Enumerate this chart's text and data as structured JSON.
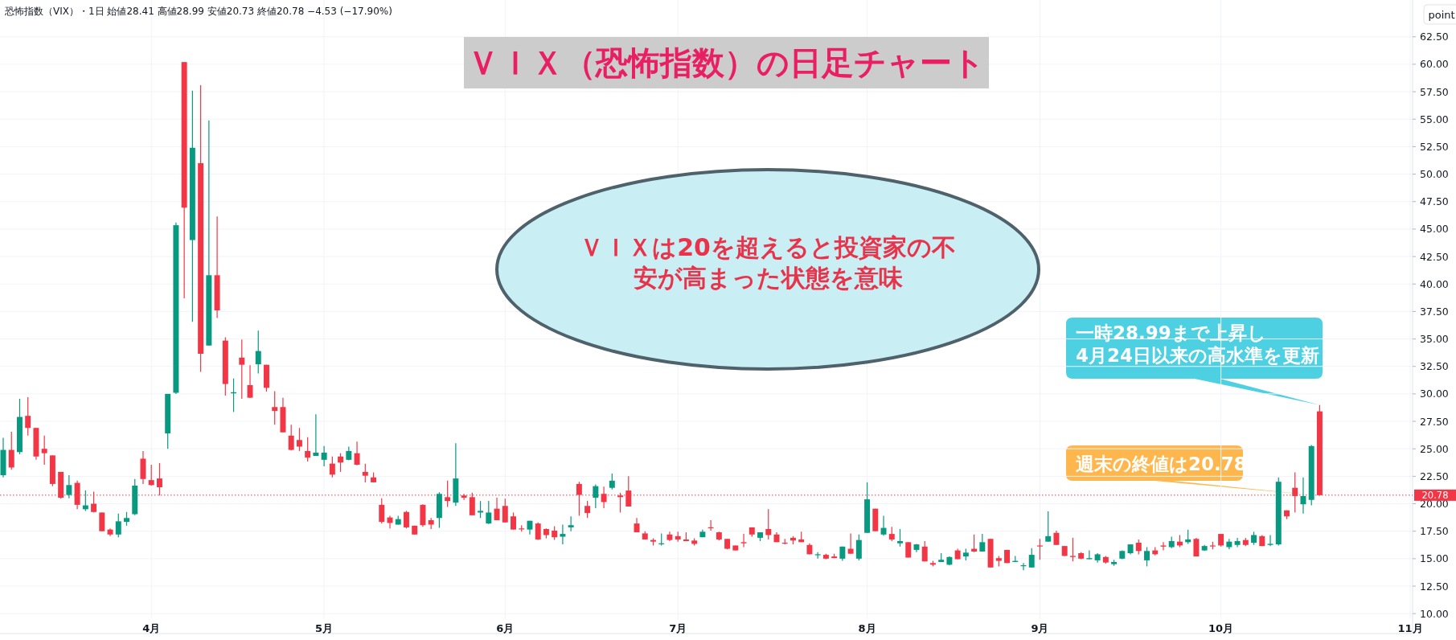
{
  "chart_data": {
    "type": "candlestick",
    "title": "ＶＩＸ（恐怖指数）の日足チャート",
    "ylabel": "point",
    "categories": [
      null,
      null,
      null,
      null,
      null,
      null,
      null,
      null,
      null,
      null,
      null,
      null,
      null,
      null,
      null,
      null,
      null,
      null,
      "4月",
      null,
      null,
      null,
      null,
      null,
      null,
      null,
      null,
      null,
      null,
      null,
      null,
      null,
      null,
      null,
      null,
      null,
      null,
      null,
      null,
      "5月",
      null,
      null,
      null,
      null,
      null,
      null,
      null,
      null,
      null,
      null,
      null,
      null,
      null,
      null,
      null,
      null,
      null,
      null,
      null,
      null,
      null,
      "6月",
      null,
      null,
      null,
      null,
      null,
      null,
      null,
      null,
      null,
      null,
      null,
      null,
      null,
      null,
      null,
      null,
      null,
      null,
      null,
      null,
      "7月",
      null,
      null,
      null,
      null,
      null,
      null,
      null,
      null,
      null,
      null,
      null,
      null,
      null,
      null,
      null,
      null,
      null,
      null,
      null,
      null,
      null,
      null,
      "8月",
      null,
      null,
      null,
      null,
      null,
      null,
      null,
      null,
      null,
      null,
      null,
      null,
      null,
      null,
      null,
      null,
      null,
      null,
      null,
      null,
      "9月",
      null,
      null,
      null,
      null,
      null,
      null,
      null,
      null,
      null,
      null,
      null,
      null,
      null,
      null,
      null,
      null,
      null,
      null,
      null,
      null,
      null,
      "10月",
      null,
      null,
      null,
      null,
      null,
      null,
      null,
      null,
      null,
      null,
      null,
      null,
      null,
      null,
      null,
      null,
      null,
      null,
      null,
      null,
      null,
      null,
      "11月"
    ],
    "ohlc": [
      [
        22.6,
        26.0,
        22.4,
        24.9
      ],
      [
        24.9,
        26.55,
        23.1,
        23.3
      ],
      [
        24.7,
        29.55,
        24.5,
        27.9
      ],
      [
        28.0,
        29.7,
        26.2,
        26.9
      ],
      [
        26.9,
        26.9,
        24.0,
        24.3
      ],
      [
        25.0,
        26.2,
        23.55,
        24.6
      ],
      [
        24.4,
        24.4,
        21.6,
        21.8
      ],
      [
        22.9,
        22.9,
        20.45,
        20.55
      ],
      [
        20.8,
        22.6,
        20.5,
        21.7
      ],
      [
        21.9,
        22.1,
        19.5,
        19.9
      ],
      [
        19.5,
        21.2,
        19.35,
        19.85
      ],
      [
        20.0,
        21.1,
        19.2,
        19.25
      ],
      [
        19.2,
        19.2,
        17.5,
        17.5
      ],
      [
        17.65,
        17.75,
        17.05,
        17.2
      ],
      [
        17.2,
        19.1,
        16.95,
        18.4
      ],
      [
        18.35,
        19.25,
        18.0,
        18.7
      ],
      [
        19.05,
        22.25,
        18.95,
        21.65
      ],
      [
        24.1,
        24.8,
        21.8,
        22.25
      ],
      [
        22.15,
        23.55,
        21.65,
        21.7
      ],
      [
        22.3,
        23.7,
        20.75,
        21.5
      ],
      [
        26.4,
        30.0,
        25.0,
        30.0
      ],
      [
        30.1,
        45.6,
        30.0,
        45.35
      ],
      [
        60.2,
        60.2,
        38.7,
        46.95
      ],
      [
        44.0,
        57.6,
        36.55,
        52.4
      ],
      [
        51.0,
        58.1,
        32.0,
        33.65
      ],
      [
        34.4,
        54.9,
        34.4,
        40.8
      ],
      [
        40.8,
        46.15,
        36.9,
        37.6
      ],
      [
        34.85,
        35.15,
        29.85,
        30.9
      ],
      [
        30.05,
        31.4,
        28.35,
        30.15
      ],
      [
        33.3,
        34.95,
        29.55,
        32.65
      ],
      [
        30.8,
        32.6,
        29.65,
        29.65
      ],
      [
        32.7,
        35.75,
        31.85,
        33.9
      ],
      [
        32.65,
        32.65,
        30.2,
        30.55
      ],
      [
        28.8,
        30.25,
        27.2,
        28.45
      ],
      [
        28.8,
        29.65,
        26.5,
        26.5
      ],
      [
        26.2,
        27.2,
        24.85,
        24.9
      ],
      [
        25.8,
        26.9,
        24.8,
        25.2
      ],
      [
        24.8,
        26.05,
        23.85,
        24.2
      ],
      [
        24.35,
        28.15,
        24.35,
        24.65
      ],
      [
        24.0,
        25.25,
        23.4,
        24.65
      ],
      [
        23.65,
        24.3,
        22.4,
        22.65
      ],
      [
        24.3,
        24.6,
        22.9,
        23.75
      ],
      [
        24.0,
        25.2,
        23.95,
        24.8
      ],
      [
        24.6,
        25.65,
        23.5,
        23.55
      ],
      [
        22.9,
        23.65,
        21.95,
        22.55
      ],
      [
        22.4,
        22.85,
        21.95,
        21.95
      ],
      [
        19.9,
        20.5,
        18.2,
        18.35
      ],
      [
        18.75,
        18.9,
        17.75,
        18.25
      ],
      [
        18.1,
        18.9,
        18.1,
        18.6
      ],
      [
        19.25,
        19.35,
        17.75,
        17.85
      ],
      [
        18.0,
        18.0,
        17.2,
        17.2
      ],
      [
        19.9,
        19.95,
        17.9,
        18.05
      ],
      [
        18.5,
        18.7,
        17.7,
        18.1
      ],
      [
        18.7,
        21.05,
        17.8,
        20.9
      ],
      [
        20.6,
        22.1,
        19.7,
        20.25
      ],
      [
        20.1,
        25.5,
        19.8,
        22.3
      ],
      [
        20.75,
        20.9,
        20.35,
        20.55
      ],
      [
        20.6,
        21.0,
        18.95,
        18.95
      ],
      [
        19.2,
        20.25,
        18.7,
        19.35
      ],
      [
        18.2,
        20.25,
        18.15,
        19.2
      ],
      [
        19.55,
        20.55,
        18.5,
        18.5
      ],
      [
        19.8,
        20.45,
        18.3,
        18.3
      ],
      [
        18.85,
        19.2,
        17.65,
        17.65
      ],
      [
        17.75,
        18.05,
        17.45,
        17.7
      ],
      [
        17.65,
        18.45,
        17.2,
        18.45
      ],
      [
        18.2,
        18.3,
        16.7,
        16.75
      ],
      [
        17.7,
        17.75,
        16.85,
        17.15
      ],
      [
        17.55,
        17.95,
        16.7,
        16.95
      ],
      [
        17.0,
        18.1,
        16.3,
        17.25
      ],
      [
        17.85,
        18.85,
        17.5,
        18.05
      ],
      [
        21.8,
        22.0,
        18.9,
        20.8
      ],
      [
        19.8,
        20.25,
        18.7,
        19.15
      ],
      [
        20.55,
        21.75,
        19.6,
        21.6
      ],
      [
        20.9,
        21.55,
        19.6,
        20.15
      ],
      [
        21.45,
        22.75,
        21.3,
        22.1
      ],
      [
        20.75,
        21.0,
        19.2,
        20.6
      ],
      [
        21.2,
        22.5,
        19.75,
        19.75
      ],
      [
        18.2,
        18.7,
        17.4,
        17.4
      ],
      [
        17.3,
        17.5,
        16.75,
        16.75
      ],
      [
        16.7,
        16.85,
        16.2,
        16.55
      ],
      [
        16.35,
        17.3,
        16.2,
        16.4
      ],
      [
        17.2,
        17.45,
        16.6,
        16.7
      ],
      [
        17.05,
        17.45,
        16.55,
        16.75
      ],
      [
        16.75,
        17.4,
        16.6,
        16.6
      ],
      [
        16.65,
        16.85,
        16.2,
        16.35
      ],
      [
        16.95,
        17.65,
        16.95,
        17.45
      ],
      [
        17.86,
        18.5,
        17.55,
        17.8
      ],
      [
        17.4,
        17.45,
        16.65,
        16.75
      ],
      [
        16.8,
        16.8,
        15.85,
        15.9
      ],
      [
        16.2,
        16.2,
        15.75,
        15.75
      ],
      [
        16.5,
        17.25,
        16.05,
        16.4
      ],
      [
        17.85,
        17.85,
        17.0,
        17.2
      ],
      [
        16.9,
        17.4,
        16.6,
        17.4
      ],
      [
        17.7,
        19.5,
        16.75,
        17.15
      ],
      [
        17.2,
        17.4,
        16.5,
        16.5
      ],
      [
        16.45,
        16.8,
        16.3,
        16.4
      ],
      [
        16.9,
        17.05,
        16.3,
        16.65
      ],
      [
        16.75,
        17.45,
        16.5,
        16.5
      ],
      [
        16.25,
        16.4,
        15.4,
        15.4
      ],
      [
        15.35,
        15.6,
        15.0,
        15.4
      ],
      [
        15.35,
        15.45,
        14.95,
        15.0
      ],
      [
        15.2,
        15.45,
        15.05,
        15.05
      ],
      [
        15.0,
        16.1,
        14.8,
        16.1
      ],
      [
        15.9,
        17.3,
        15.45,
        15.45
      ],
      [
        15.0,
        17.2,
        14.85,
        16.7
      ],
      [
        17.35,
        21.95,
        17.35,
        20.4
      ],
      [
        19.55,
        19.55,
        17.5,
        17.5
      ],
      [
        17.2,
        18.9,
        17.1,
        17.8
      ],
      [
        17.25,
        17.9,
        16.6,
        16.75
      ],
      [
        16.4,
        17.7,
        16.1,
        16.6
      ],
      [
        16.5,
        16.5,
        15.1,
        15.1
      ],
      [
        15.8,
        16.35,
        15.6,
        16.3
      ],
      [
        16.1,
        16.6,
        14.75,
        14.75
      ],
      [
        14.6,
        14.8,
        14.3,
        14.45
      ],
      [
        14.7,
        15.5,
        14.7,
        14.9
      ],
      [
        14.45,
        15.2,
        14.4,
        15.15
      ],
      [
        15.75,
        15.9,
        14.95,
        14.95
      ],
      [
        15.2,
        15.9,
        14.85,
        15.55
      ],
      [
        15.9,
        17.2,
        15.6,
        15.65
      ],
      [
        15.65,
        17.25,
        15.65,
        16.5
      ],
      [
        16.8,
        16.8,
        14.2,
        14.2
      ],
      [
        15.05,
        15.25,
        14.3,
        14.8
      ],
      [
        15.8,
        15.8,
        14.6,
        14.6
      ],
      [
        14.7,
        15.25,
        14.7,
        14.8
      ],
      [
        14.35,
        14.6,
        13.95,
        14.4
      ],
      [
        14.2,
        15.95,
        14.2,
        15.35
      ],
      [
        16.2,
        16.8,
        14.9,
        16.15
      ],
      [
        16.55,
        19.3,
        16.55,
        17.05
      ],
      [
        17.35,
        17.55,
        16.25,
        16.25
      ],
      [
        16.15,
        16.15,
        15.25,
        15.25
      ],
      [
        15.25,
        16.9,
        14.75,
        15.15
      ],
      [
        15.5,
        15.6,
        14.95,
        15.0
      ],
      [
        14.95,
        15.75,
        14.95,
        15.05
      ],
      [
        14.85,
        15.5,
        14.65,
        15.4
      ],
      [
        15.15,
        15.25,
        14.55,
        14.65
      ],
      [
        14.5,
        14.9,
        14.35,
        14.7
      ],
      [
        15.0,
        15.75,
        14.95,
        15.7
      ],
      [
        15.5,
        16.3,
        15.4,
        16.3
      ],
      [
        16.45,
        16.75,
        15.4,
        15.7
      ],
      [
        14.85,
        16.05,
        14.3,
        15.7
      ],
      [
        15.75,
        16.05,
        15.3,
        15.4
      ],
      [
        16.2,
        16.5,
        15.75,
        16.1
      ],
      [
        16.05,
        17.0,
        15.95,
        16.6
      ],
      [
        16.55,
        17.15,
        16.05,
        16.2
      ],
      [
        16.5,
        17.65,
        16.35,
        16.75
      ],
      [
        16.8,
        16.9,
        15.2,
        15.2
      ],
      [
        15.75,
        16.25,
        15.7,
        16.15
      ],
      [
        16.2,
        16.55,
        15.85,
        16.15
      ],
      [
        17.25,
        17.25,
        16.1,
        16.2
      ],
      [
        16.05,
        16.8,
        15.85,
        16.55
      ],
      [
        16.25,
        16.9,
        16.05,
        16.6
      ],
      [
        16.7,
        16.9,
        16.15,
        16.25
      ],
      [
        16.45,
        17.45,
        16.25,
        17.15
      ],
      [
        17.05,
        17.15,
        16.15,
        16.15
      ],
      [
        16.25,
        17.15,
        16.15,
        16.35
      ],
      [
        16.3,
        22.4,
        16.2,
        22.0
      ],
      [
        19.4,
        19.4,
        18.6,
        18.85
      ],
      [
        21.45,
        22.85,
        19.2,
        20.7
      ],
      [
        19.95,
        22.4,
        19.1,
        20.7
      ],
      [
        20.35,
        25.35,
        19.85,
        25.25
      ],
      [
        28.41,
        28.99,
        20.73,
        20.78
      ],
      null,
      null,
      null,
      null,
      null,
      null,
      null,
      null,
      null,
      null,
      null
    ],
    "ylim": [
      9.5,
      65.85
    ],
    "yticks": [
      {
        "value": 10,
        "label": "10.00"
      },
      {
        "value": 12.5,
        "label": "12.50"
      },
      {
        "value": 15,
        "label": "15.00"
      },
      {
        "value": 17.5,
        "label": "17.50"
      },
      {
        "value": 20,
        "label": "20.00"
      },
      {
        "value": 22.5,
        "label": "22.50"
      },
      {
        "value": 25,
        "label": "25.00"
      },
      {
        "value": 27.5,
        "label": "27.50"
      },
      {
        "value": 30,
        "label": "30.00"
      },
      {
        "value": 32.5,
        "label": "32.50"
      },
      {
        "value": 35,
        "label": "35.00"
      },
      {
        "value": 37.5,
        "label": "37.50"
      },
      {
        "value": 40,
        "label": "40.00"
      },
      {
        "value": 42.5,
        "label": "42.50"
      },
      {
        "value": 45,
        "label": "45.00"
      },
      {
        "value": 47.5,
        "label": "47.50"
      },
      {
        "value": 50,
        "label": "50.00"
      },
      {
        "value": 52.5,
        "label": "52.50"
      },
      {
        "value": 55,
        "label": "55.00"
      },
      {
        "value": 57.5,
        "label": "57.50"
      },
      {
        "value": 60,
        "label": "60.00"
      },
      {
        "value": 62.5,
        "label": "62.50"
      }
    ],
    "grid": true,
    "ref_lines": [
      {
        "axis": "y",
        "value": 20.78,
        "label": "20.78",
        "color": "#f23645",
        "line_style": "dotted"
      }
    ],
    "annotations": [
      "恐怖指数（VIX）・1日 始値28.41 高値28.99 安値20.73 終値20.78 −4.53 (−17.90%)",
      "ＶＩＸは20を超えると投資家の不安が高まった状態を意味",
      "一時28.99まで上昇し\n4月24日以来の高水準を更新",
      "週末の終値は20.78"
    ]
  }
}
